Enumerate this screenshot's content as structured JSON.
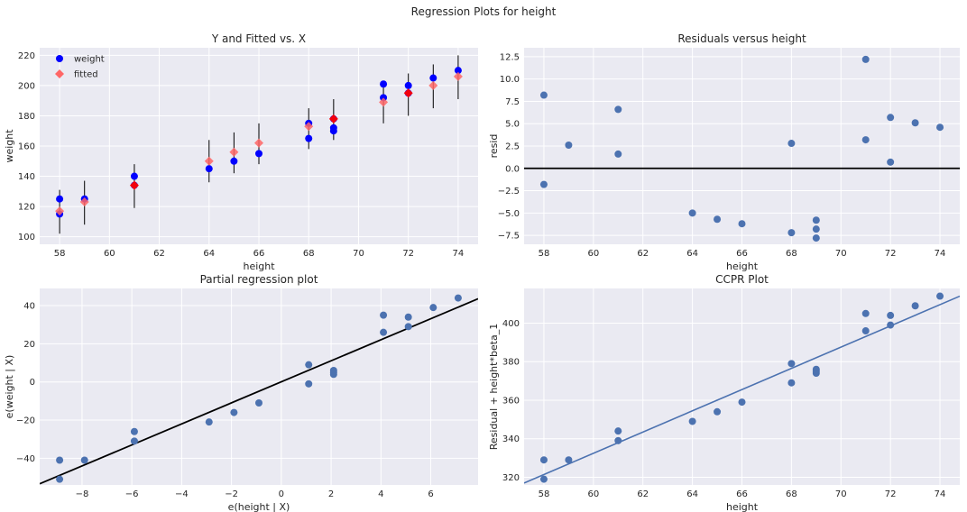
{
  "figure_title": "Regression Plots for height",
  "colors": {
    "axes_bg": "#EAEAF2",
    "grid": "#ffffff",
    "weight_points": "#0000ff",
    "fitted_points": "#ff6666",
    "fitted_overlap": "#ff0000",
    "seaborn_blue": "#4C72B0",
    "black_line": "#000000"
  },
  "chart_data": [
    {
      "type": "scatter",
      "title": "Y and Fitted vs. X",
      "xlabel": "height",
      "ylabel": "weight",
      "xlim": [
        57.2,
        74.8
      ],
      "ylim": [
        95,
        225
      ],
      "xticks": [
        58,
        60,
        62,
        64,
        66,
        68,
        70,
        72,
        74
      ],
      "yticks": [
        100,
        120,
        140,
        160,
        180,
        200,
        220
      ],
      "legend": {
        "placement": "top-left",
        "labels": [
          "weight",
          "fitted"
        ]
      },
      "series": [
        {
          "name": "weight",
          "marker": "circle",
          "points": [
            [
              58,
              115
            ],
            [
              58,
              125
            ],
            [
              59,
              125
            ],
            [
              61,
              134
            ],
            [
              61,
              140
            ],
            [
              64,
              145
            ],
            [
              65,
              150
            ],
            [
              66,
              155
            ],
            [
              68,
              165
            ],
            [
              68,
              175
            ],
            [
              69,
              170
            ],
            [
              69,
              172
            ],
            [
              69,
              178
            ],
            [
              71,
              192
            ],
            [
              71,
              201
            ],
            [
              72,
              195
            ],
            [
              72,
              200
            ],
            [
              73,
              205
            ],
            [
              74,
              210
            ]
          ]
        },
        {
          "name": "fitted",
          "marker": "diamond",
          "points": [
            [
              58,
              117
            ],
            [
              59,
              123
            ],
            [
              61,
              134
            ],
            [
              64,
              150
            ],
            [
              65,
              156
            ],
            [
              66,
              162
            ],
            [
              68,
              173
            ],
            [
              69,
              178
            ],
            [
              71,
              189
            ],
            [
              72,
              195
            ],
            [
              73,
              200
            ],
            [
              74,
              206
            ]
          ]
        }
      ],
      "error_bars": [
        [
          58,
          102,
          131
        ],
        [
          59,
          108,
          137
        ],
        [
          61,
          119,
          148
        ],
        [
          64,
          136,
          164
        ],
        [
          65,
          142,
          169
        ],
        [
          66,
          148,
          175
        ],
        [
          68,
          158,
          185
        ],
        [
          69,
          164,
          191
        ],
        [
          71,
          175,
          202
        ],
        [
          72,
          180,
          208
        ],
        [
          73,
          185,
          214
        ],
        [
          74,
          191,
          220
        ]
      ]
    },
    {
      "type": "scatter",
      "title": "Residuals versus height",
      "xlabel": "height",
      "ylabel": "resid",
      "xlim": [
        57.2,
        74.8
      ],
      "ylim": [
        -8.5,
        13.5
      ],
      "xticks": [
        58,
        60,
        62,
        64,
        66,
        68,
        70,
        72,
        74
      ],
      "yticks": [
        -7.5,
        -5.0,
        -2.5,
        0.0,
        2.5,
        5.0,
        7.5,
        10.0,
        12.5
      ],
      "ytick_labels": [
        "−7.5",
        "−5.0",
        "−2.5",
        "0.0",
        "2.5",
        "5.0",
        "7.5",
        "10.0",
        "12.5"
      ],
      "hline": 0,
      "points": [
        [
          58,
          8.2
        ],
        [
          58,
          -1.8
        ],
        [
          59,
          2.6
        ],
        [
          61,
          6.6
        ],
        [
          61,
          1.6
        ],
        [
          64,
          -5.0
        ],
        [
          65,
          -5.7
        ],
        [
          66,
          -6.2
        ],
        [
          68,
          -7.2
        ],
        [
          68,
          2.8
        ],
        [
          69,
          -5.8
        ],
        [
          69,
          -6.8
        ],
        [
          69,
          -7.8
        ],
        [
          71,
          12.2
        ],
        [
          71,
          3.2
        ],
        [
          72,
          5.7
        ],
        [
          72,
          0.7
        ],
        [
          73,
          5.1
        ],
        [
          74,
          4.6
        ]
      ]
    },
    {
      "type": "scatter",
      "title": "Partial regression plot",
      "xlabel": "e(height | X)",
      "ylabel": "e(weight | X)",
      "xlim": [
        -9.7,
        7.9
      ],
      "ylim": [
        -54,
        49
      ],
      "xticks": [
        -8,
        -6,
        -4,
        -2,
        0,
        2,
        4,
        6
      ],
      "xtick_labels": [
        "−8",
        "−6",
        "−4",
        "−2",
        "0",
        "2",
        "4",
        "6"
      ],
      "yticks": [
        -40,
        -20,
        0,
        20,
        40
      ],
      "ytick_labels": [
        "−40",
        "−20",
        "0",
        "20",
        "40"
      ],
      "fit_line": [
        [
          -9.7,
          -53.4
        ],
        [
          7.9,
          43.6
        ]
      ],
      "points": [
        [
          -8.9,
          -41
        ],
        [
          -8.9,
          -51
        ],
        [
          -7.9,
          -41
        ],
        [
          -5.9,
          -26
        ],
        [
          -5.9,
          -31
        ],
        [
          -2.9,
          -21
        ],
        [
          -1.9,
          -16
        ],
        [
          -0.9,
          -11
        ],
        [
          1.1,
          -1
        ],
        [
          1.1,
          9
        ],
        [
          2.1,
          4
        ],
        [
          2.1,
          6
        ],
        [
          2.1,
          5
        ],
        [
          4.1,
          26
        ],
        [
          4.1,
          35
        ],
        [
          5.1,
          29
        ],
        [
          5.1,
          34
        ],
        [
          6.1,
          39
        ],
        [
          7.1,
          44
        ]
      ]
    },
    {
      "type": "scatter",
      "title": "CCPR Plot",
      "xlabel": "height",
      "ylabel": "Residual + height*beta_1",
      "xlim": [
        57.2,
        74.8
      ],
      "ylim": [
        316,
        418
      ],
      "xticks": [
        58,
        60,
        62,
        64,
        66,
        68,
        70,
        72,
        74
      ],
      "yticks": [
        320,
        340,
        360,
        380,
        400
      ],
      "fit_line": [
        [
          57.2,
          317
        ],
        [
          74.8,
          414
        ]
      ],
      "points": [
        [
          58,
          329
        ],
        [
          58,
          319
        ],
        [
          59,
          329
        ],
        [
          61,
          344
        ],
        [
          61,
          339
        ],
        [
          64,
          349
        ],
        [
          65,
          354
        ],
        [
          66,
          359
        ],
        [
          68,
          369
        ],
        [
          68,
          379
        ],
        [
          69,
          374
        ],
        [
          69,
          375
        ],
        [
          69,
          376
        ],
        [
          71,
          396
        ],
        [
          71,
          405
        ],
        [
          72,
          399
        ],
        [
          72,
          404
        ],
        [
          73,
          409
        ],
        [
          74,
          414
        ]
      ]
    }
  ]
}
